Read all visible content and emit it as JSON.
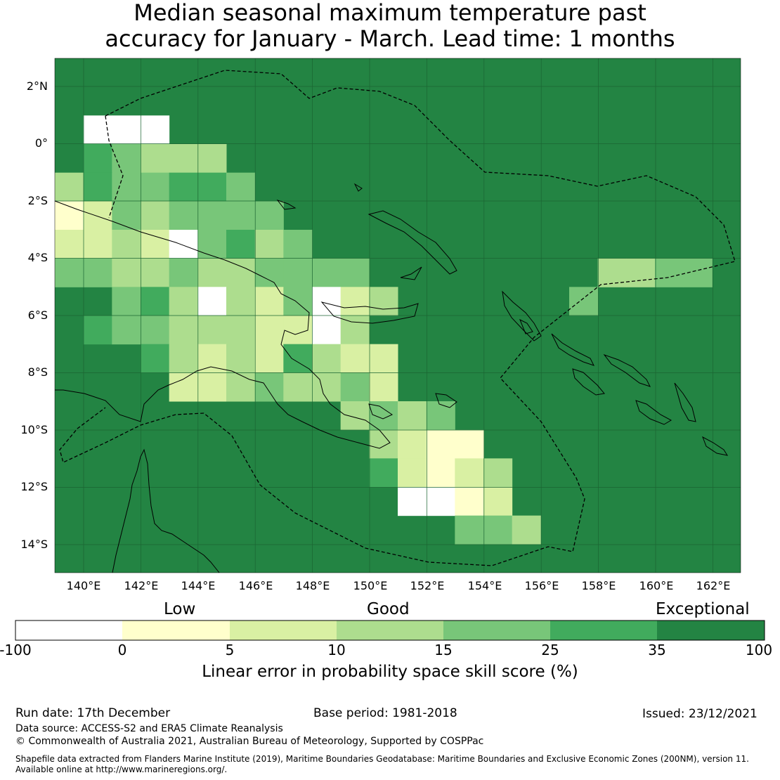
{
  "title": {
    "line1": "Median seasonal maximum temperature past",
    "line2": "accuracy for January - March. Lead time: 1 months"
  },
  "map": {
    "lat_labels": [
      "2°N",
      "0°",
      "2°S",
      "4°S",
      "6°S",
      "8°S",
      "10°S",
      "12°S",
      "14°S"
    ],
    "lon_labels": [
      "140°E",
      "142°E",
      "144°E",
      "146°E",
      "148°E",
      "150°E",
      "152°E",
      "154°E",
      "156°E",
      "158°E",
      "160°E",
      "162°E"
    ],
    "background_color": "#238443",
    "regions": [
      "Papua New Guinea",
      "Solomon Islands",
      "northern Australia"
    ]
  },
  "colorbar": {
    "categories": [
      "Low",
      "Good",
      "Exceptional"
    ],
    "ticks": [
      "-100",
      "0",
      "5",
      "10",
      "15",
      "25",
      "35",
      "100"
    ],
    "colors": [
      "#ffffff",
      "#ffffcc",
      "#d9f0a3",
      "#addd8e",
      "#78c679",
      "#41ab5d",
      "#238443"
    ],
    "label": "Linear error in probability space skill score (%)"
  },
  "footer": {
    "run_date": "Run date: 17th December",
    "base_period": "Base period: 1981-2018",
    "issued": "Issued: 23/12/2021",
    "data_source": "Data source: ACCESS-S2 and ERA5 Climate Reanalysis",
    "copyright": "© Commonwealth of Australia 2021, Australian Bureau of Meteorology, Supported by COSPPac",
    "shapefile_line1": "Shapefile data extracted from Flanders Marine Institute (2019), Maritime Boundaries Geodatabase: Maritime Boundaries and Exclusive Economic Zones (200NM), version 11.",
    "shapefile_line2": "Available online at http://www.marineregions.org/."
  }
}
